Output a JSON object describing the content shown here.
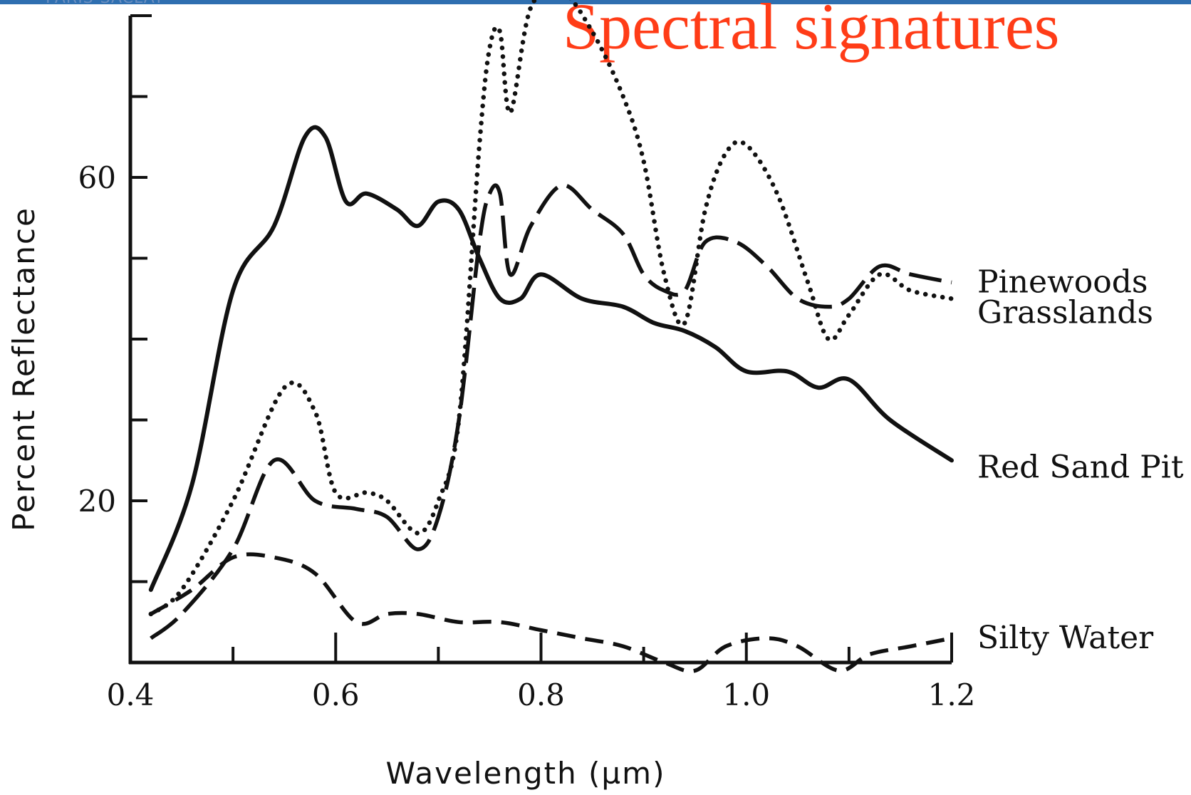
{
  "header": {
    "fragment": "PARIS-SACLAY",
    "title": "Spectral signatures"
  },
  "chart_data": {
    "type": "line",
    "title": "Spectral signatures",
    "xlabel": "Wavelength (µm)",
    "ylabel": "Percent Reflectance",
    "xlim": [
      0.4,
      1.2
    ],
    "ylim": [
      0,
      80
    ],
    "x_ticks": [
      0.4,
      0.6,
      0.8,
      1.0,
      1.2
    ],
    "x_tick_labels": [
      "0.4",
      "0.6",
      "0.8",
      "1.0",
      "1.2"
    ],
    "y_ticks": [
      20,
      60
    ],
    "y_tick_labels": [
      "20",
      "60"
    ],
    "grid": false,
    "legend": "right, labels at line ends",
    "series": [
      {
        "name": "Pinewoods",
        "style": "long-dash",
        "x": [
          0.42,
          0.45,
          0.5,
          0.54,
          0.58,
          0.62,
          0.65,
          0.68,
          0.7,
          0.72,
          0.74,
          0.75,
          0.76,
          0.77,
          0.79,
          0.82,
          0.85,
          0.88,
          0.9,
          0.92,
          0.94,
          0.96,
          0.99,
          1.02,
          1.05,
          1.08,
          1.1,
          1.13,
          1.16,
          1.2
        ],
        "y": [
          3,
          6,
          14,
          25,
          20,
          19,
          18,
          14,
          18,
          30,
          52,
          58,
          58,
          48,
          54,
          59,
          56,
          53,
          48,
          46,
          46,
          52,
          52,
          49,
          45,
          44,
          45,
          49,
          48,
          47
        ]
      },
      {
        "name": "Grasslands",
        "style": "dotted",
        "x": [
          0.42,
          0.45,
          0.5,
          0.55,
          0.58,
          0.6,
          0.63,
          0.65,
          0.68,
          0.7,
          0.72,
          0.74,
          0.75,
          0.76,
          0.77,
          0.79,
          0.82,
          0.85,
          0.88,
          0.9,
          0.92,
          0.94,
          0.96,
          0.98,
          1.0,
          1.03,
          1.06,
          1.08,
          1.1,
          1.13,
          1.16,
          1.2
        ],
        "y": [
          6,
          9,
          20,
          34,
          31,
          21,
          21,
          20,
          16,
          20,
          30,
          64,
          76,
          78,
          68,
          81,
          83,
          78,
          70,
          62,
          48,
          42,
          56,
          63,
          64,
          58,
          47,
          40,
          43,
          48,
          46,
          45
        ]
      },
      {
        "name": "Red Sand Pit",
        "style": "solid",
        "x": [
          0.42,
          0.46,
          0.5,
          0.54,
          0.57,
          0.59,
          0.61,
          0.63,
          0.66,
          0.68,
          0.7,
          0.72,
          0.74,
          0.76,
          0.78,
          0.8,
          0.84,
          0.88,
          0.91,
          0.94,
          0.97,
          1.0,
          1.04,
          1.07,
          1.1,
          1.14,
          1.2
        ],
        "y": [
          9,
          22,
          46,
          54,
          65,
          65,
          57,
          58,
          56,
          54,
          57,
          56,
          50,
          45,
          45,
          48,
          45,
          44,
          42,
          41,
          39,
          36,
          36,
          34,
          35,
          30,
          25
        ]
      },
      {
        "name": "Silty Water",
        "style": "dashed",
        "x": [
          0.42,
          0.46,
          0.5,
          0.54,
          0.58,
          0.62,
          0.65,
          0.68,
          0.72,
          0.76,
          0.8,
          0.84,
          0.88,
          0.92,
          0.95,
          0.98,
          1.02,
          1.05,
          1.09,
          1.12,
          1.16,
          1.2
        ],
        "y": [
          6,
          9,
          13,
          13,
          11,
          5,
          6,
          6,
          5,
          5,
          4,
          3,
          2,
          0,
          -1,
          2,
          3,
          2,
          -1,
          1,
          2,
          3
        ]
      }
    ]
  }
}
